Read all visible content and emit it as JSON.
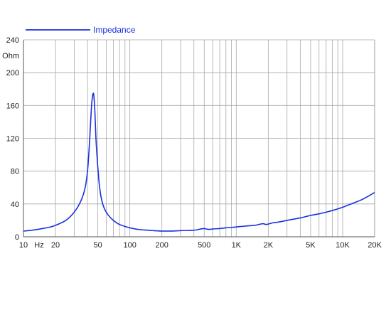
{
  "chart_data": {
    "type": "line",
    "x_scale": "log",
    "xlim": [
      10,
      20000
    ],
    "ylim": [
      0,
      240
    ],
    "grid": true,
    "legend_position": "top-left",
    "y_unit": "Ohm",
    "x_unit": "Hz",
    "x_ticks": [
      {
        "value": 10,
        "label": "10"
      },
      {
        "value": 20,
        "label": "20"
      },
      {
        "value": 50,
        "label": "50"
      },
      {
        "value": 100,
        "label": "100"
      },
      {
        "value": 200,
        "label": "200"
      },
      {
        "value": 500,
        "label": "500"
      },
      {
        "value": 1000,
        "label": "1K"
      },
      {
        "value": 2000,
        "label": "2K"
      },
      {
        "value": 5000,
        "label": "5K"
      },
      {
        "value": 10000,
        "label": "10K"
      },
      {
        "value": 20000,
        "label": "20K"
      }
    ],
    "y_ticks": [
      {
        "value": 0,
        "label": "0"
      },
      {
        "value": 40,
        "label": "40"
      },
      {
        "value": 80,
        "label": "80"
      },
      {
        "value": 120,
        "label": "120"
      },
      {
        "value": 160,
        "label": "160"
      },
      {
        "value": 200,
        "label": "200"
      },
      {
        "value": 240,
        "label": "240"
      }
    ],
    "series": [
      {
        "name": "Impedance",
        "color": "#1a2fe0",
        "x": [
          10,
          12,
          15,
          18,
          20,
          25,
          30,
          35,
          38,
          40,
          42,
          43,
          44,
          45,
          45.5,
          46,
          47,
          48,
          50,
          52,
          55,
          60,
          70,
          80,
          100,
          120,
          150,
          200,
          250,
          300,
          400,
          500,
          550,
          600,
          700,
          800,
          1000,
          1200,
          1500,
          1800,
          1900,
          2000,
          2200,
          2500,
          3000,
          4000,
          5000,
          6000,
          7000,
          8000,
          10000,
          12000,
          15000,
          20000
        ],
        "y": [
          7,
          8,
          10,
          12,
          14,
          20,
          30,
          45,
          60,
          80,
          120,
          145,
          165,
          174,
          175,
          170,
          150,
          120,
          85,
          60,
          42,
          30,
          20,
          15,
          11,
          9,
          8,
          7,
          7,
          7.5,
          8,
          10,
          9,
          9.5,
          10,
          11,
          12,
          13,
          14,
          16,
          15,
          15.5,
          17,
          18,
          20,
          23,
          26,
          28,
          30,
          32,
          36,
          40,
          45,
          54
        ]
      }
    ]
  }
}
